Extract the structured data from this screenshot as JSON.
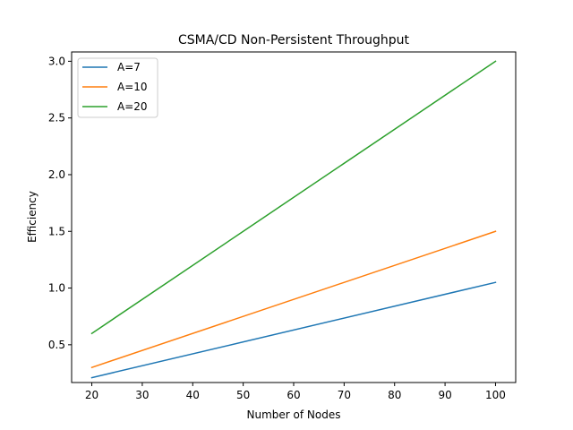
{
  "chart_data": {
    "type": "line",
    "title": "CSMA/CD Non-Persistent Throughput",
    "xlabel": "Number of Nodes",
    "ylabel": "Efficiency",
    "x": [
      20,
      100
    ],
    "xlim": [
      16,
      104
    ],
    "ylim": [
      0.167,
      3.082
    ],
    "xticks": [
      20,
      30,
      40,
      50,
      60,
      70,
      80,
      90,
      100
    ],
    "xtick_labels": [
      "20",
      "30",
      "40",
      "50",
      "60",
      "70",
      "80",
      "90",
      "100"
    ],
    "yticks": [
      0.5,
      1.0,
      1.5,
      2.0,
      2.5,
      3.0
    ],
    "ytick_labels": [
      "0.5",
      "1.0",
      "1.5",
      "2.0",
      "2.5",
      "3.0"
    ],
    "grid": false,
    "legend_position": "top-left",
    "series": [
      {
        "name": "A=7",
        "color": "#1f77b4",
        "values": [
          0.21,
          1.05
        ]
      },
      {
        "name": "A=10",
        "color": "#ff7f0e",
        "values": [
          0.3,
          1.5
        ]
      },
      {
        "name": "A=20",
        "color": "#2ca02c",
        "values": [
          0.6,
          3.0
        ]
      }
    ]
  }
}
